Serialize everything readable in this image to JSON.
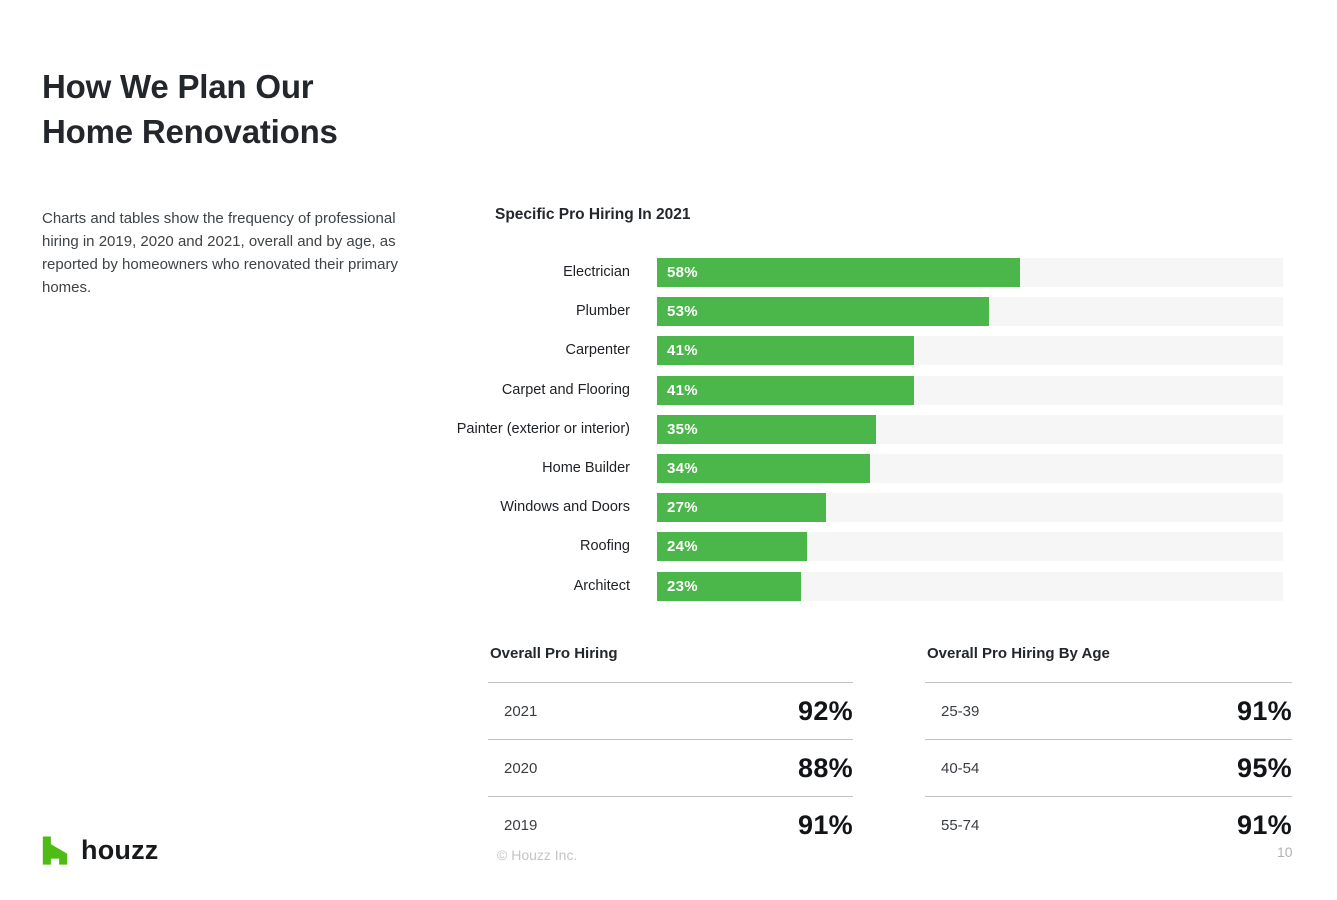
{
  "header": {
    "title_line1": "How We Plan Our",
    "title_line2": "Home Renovations",
    "description": "Charts and tables show the frequency of professional hiring in 2019, 2020 and 2021, overall and by age, as reported by homeowners who renovated their primary homes."
  },
  "colors": {
    "bar_green": "#4BB649",
    "bar_track": "#F6F6F6",
    "logo_green": "#4DBC15",
    "divider_gray": "#C3C3C3"
  },
  "chart_data": [
    {
      "type": "bar",
      "title": "Specific Pro Hiring In 2021",
      "orientation": "horizontal",
      "xlim": [
        0,
        100
      ],
      "unit": "%",
      "grid": false,
      "legend": "none",
      "categories": [
        "Electrician",
        "Plumber",
        "Carpenter",
        "Carpet and Flooring",
        "Painter (exterior or interior)",
        "Home Builder",
        "Windows and Doors",
        "Roofing",
        "Architect"
      ],
      "values": [
        58,
        53,
        41,
        41,
        35,
        34,
        27,
        24,
        23
      ],
      "value_labels": [
        "58%",
        "53%",
        "41%",
        "41%",
        "35%",
        "34%",
        "27%",
        "24%",
        "23%"
      ]
    },
    {
      "type": "table",
      "title": "Overall Pro Hiring",
      "rows": [
        {
          "label": "2021",
          "value": "92%"
        },
        {
          "label": "2020",
          "value": "88%"
        },
        {
          "label": "2019",
          "value": "91%"
        }
      ]
    },
    {
      "type": "table",
      "title": "Overall Pro Hiring By Age",
      "rows": [
        {
          "label": "25-39",
          "value": "91%"
        },
        {
          "label": "40-54",
          "value": "95%"
        },
        {
          "label": "55-74",
          "value": "91%"
        }
      ]
    }
  ],
  "footer": {
    "logo_text": "houzz",
    "copyright": "© Houzz Inc.",
    "page_number": "10"
  }
}
